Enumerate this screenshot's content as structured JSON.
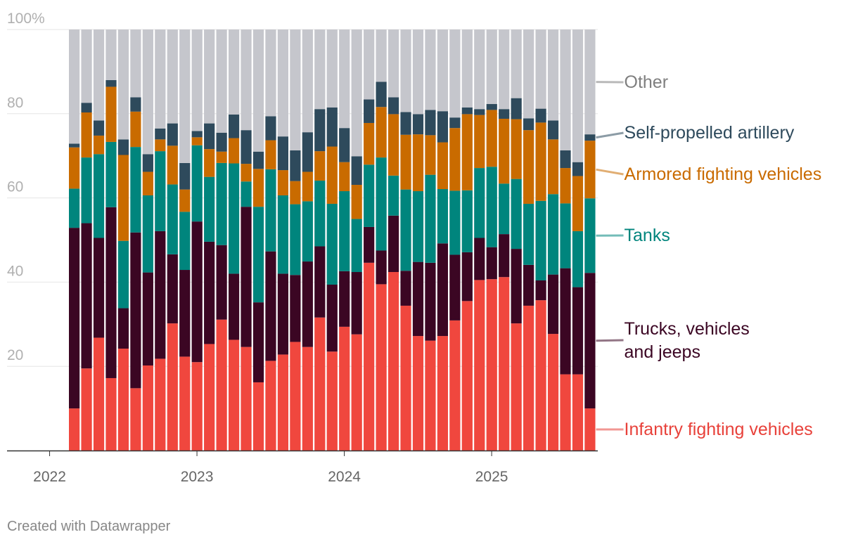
{
  "credit": "Created with Datawrapper",
  "chart_data": {
    "type": "bar",
    "stacked": true,
    "ylim": [
      0,
      100
    ],
    "y_ticks": [
      {
        "value": 20,
        "label": "20"
      },
      {
        "value": 40,
        "label": "40"
      },
      {
        "value": 60,
        "label": "60"
      },
      {
        "value": 80,
        "label": "80"
      },
      {
        "value": 100,
        "label": "100%"
      }
    ],
    "x_ticks": [
      {
        "value": "2022-01",
        "label": "2022"
      },
      {
        "value": "2023-01",
        "label": "2023"
      },
      {
        "value": "2024-01",
        "label": "2024"
      },
      {
        "value": "2025-01",
        "label": "2025"
      }
    ],
    "x": [
      "2022-02",
      "2022-03",
      "2022-04",
      "2022-05",
      "2022-06",
      "2022-07",
      "2022-08",
      "2022-09",
      "2022-10",
      "2022-11",
      "2022-12",
      "2023-01",
      "2023-02",
      "2023-03",
      "2023-04",
      "2023-05",
      "2023-06",
      "2023-07",
      "2023-08",
      "2023-09",
      "2023-10",
      "2023-11",
      "2023-12",
      "2024-01",
      "2024-02",
      "2024-03",
      "2024-04",
      "2024-05",
      "2024-06",
      "2024-07",
      "2024-08",
      "2024-09",
      "2024-10",
      "2024-11",
      "2024-12",
      "2025-01",
      "2025-02",
      "2025-03",
      "2025-04",
      "2025-05",
      "2025-06",
      "2025-07",
      "2025-08"
    ],
    "series": [
      {
        "name": "Infantry fighting vehicles",
        "color": "#f0473e",
        "label_color": "#e8413a",
        "values": [
          10.0,
          19.5,
          26.8,
          17.2,
          24.2,
          14.8,
          20.2,
          21.8,
          30.2,
          22.3,
          21.0,
          25.3,
          31.1,
          26.3,
          24.6,
          16.2,
          21.3,
          22.8,
          25.8,
          24.6,
          31.6,
          23.5,
          29.4,
          27.6,
          44.6,
          39.5,
          42.4,
          34.4,
          27.2,
          26.1,
          27.2,
          30.9,
          35.5,
          40.5,
          40.7,
          41.2,
          30.2,
          34.4,
          35.7,
          27.7,
          18.1,
          18.1,
          10.0
        ]
      },
      {
        "name": "Trucks, vehicles and jeeps",
        "color": "#3b0623",
        "label_color": "#3b0623",
        "values": [
          42.9,
          34.5,
          23.7,
          40.6,
          9.6,
          37.0,
          22.1,
          30.3,
          16.4,
          20.6,
          33.4,
          24.3,
          17.7,
          15.7,
          33.3,
          19.0,
          26.0,
          19.2,
          15.9,
          20.3,
          16.9,
          15.9,
          13.2,
          14.8,
          8.5,
          8.0,
          13.4,
          8.3,
          17.6,
          18.5,
          22.0,
          15.6,
          11.6,
          10.0,
          7.6,
          10.2,
          17.7,
          9.7,
          4.7,
          14.1,
          25.2,
          20.7,
          32.2
        ]
      },
      {
        "name": "Tanks",
        "color": "#00857d",
        "label_color": "#00857d",
        "values": [
          9.3,
          15.6,
          19.9,
          15.5,
          16.0,
          20.3,
          18.3,
          19.0,
          16.6,
          13.8,
          18.1,
          15.4,
          19.5,
          26.2,
          6.0,
          22.7,
          19.5,
          18.6,
          16.8,
          14.3,
          15.6,
          19.2,
          19.0,
          12.6,
          14.8,
          22.1,
          9.5,
          19.3,
          16.8,
          20.9,
          12.9,
          15.2,
          14.7,
          16.6,
          19.1,
          12.0,
          16.6,
          14.5,
          18.9,
          19.1,
          15.4,
          13.3,
          17.7
        ]
      },
      {
        "name": "Armored fighting vehicles",
        "color": "#c96b00",
        "label_color": "#c96b00",
        "values": [
          9.8,
          10.7,
          4.4,
          13.1,
          20.4,
          8.4,
          5.6,
          2.8,
          9.2,
          5.3,
          1.9,
          6.6,
          2.7,
          6.0,
          4.2,
          9.0,
          6.9,
          6.0,
          5.5,
          7.0,
          7.0,
          13.6,
          6.9,
          8.1,
          9.9,
          12.0,
          14.6,
          13.0,
          13.5,
          9.4,
          11.1,
          14.9,
          18.1,
          12.6,
          13.5,
          15.4,
          14.2,
          17.5,
          18.6,
          13.0,
          8.4,
          13.1,
          13.7
        ]
      },
      {
        "name": "Self-propelled artillery",
        "color": "#2e4a5c",
        "label_color": "#2e4a5c",
        "values": [
          0.9,
          2.3,
          3.6,
          1.6,
          3.7,
          3.4,
          4.2,
          2.6,
          5.3,
          6.3,
          1.5,
          6.1,
          4.5,
          5.6,
          8.0,
          4.1,
          5.7,
          8.0,
          7.3,
          9.4,
          10.0,
          9.3,
          8.1,
          6.8,
          5.6,
          6.0,
          4.0,
          5.4,
          4.8,
          6.0,
          7.4,
          2.5,
          1.6,
          1.4,
          1.4,
          2.3,
          5.0,
          2.8,
          3.3,
          4.5,
          4.2,
          3.3,
          1.5
        ]
      },
      {
        "name": "Other",
        "color": "#c5c6cc",
        "label_color": "#7f7f7f",
        "values": [
          27.1,
          17.4,
          21.6,
          12.0,
          26.1,
          16.1,
          29.6,
          23.5,
          22.3,
          31.7,
          24.1,
          22.3,
          24.5,
          20.2,
          23.9,
          29.0,
          20.6,
          25.4,
          28.7,
          24.4,
          18.9,
          18.5,
          23.4,
          30.1,
          16.6,
          12.4,
          16.1,
          19.6,
          20.1,
          19.1,
          19.4,
          20.9,
          18.5,
          18.9,
          17.7,
          18.9,
          16.3,
          21.1,
          18.8,
          21.6,
          28.7,
          31.5,
          24.9
        ]
      }
    ],
    "legend": "right, inline labels beside the last bar"
  }
}
